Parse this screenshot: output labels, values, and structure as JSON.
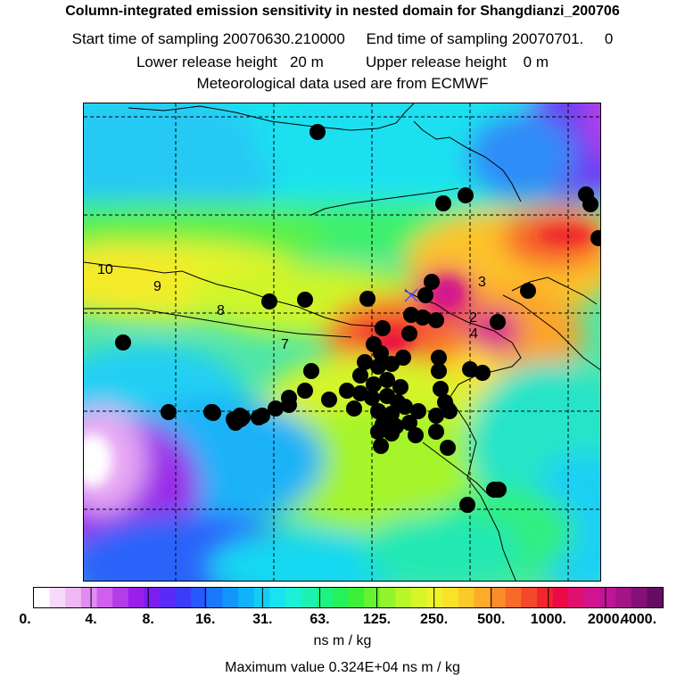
{
  "header": {
    "title": "Column-integrated emission sensitivity in nested domain for Shangdianzi_200706",
    "line2": "Start time of sampling 20070630.210000     End time of sampling 20070701.     0",
    "line3": "Lower release height   20 m          Upper release height    0 m",
    "line4": "Meteorological data used are from ECMWF"
  },
  "map": {
    "trajectory_labels": [
      "10",
      "9",
      "8",
      "7",
      "3",
      "2",
      "4"
    ]
  },
  "colorbar": {
    "ticks": [
      "0.",
      "4.",
      "8.",
      "16.",
      "31.",
      "63.",
      "125.",
      "250.",
      "500.",
      "1000.",
      "2000.",
      "4000."
    ],
    "colors": [
      "#ffffff",
      "#f8d8fb",
      "#eeb8f5",
      "#e08cf0",
      "#d060ec",
      "#b53de8",
      "#9a1fe8",
      "#7a1ff0",
      "#5a2af6",
      "#3a3cf8",
      "#2758fb",
      "#1a78fc",
      "#1296fc",
      "#10b2fa",
      "#12cdf6",
      "#18e3ee",
      "#1cf0d6",
      "#1cf3b0",
      "#1ef285",
      "#26f05a",
      "#3cf03a",
      "#66f230",
      "#92f42c",
      "#b8f62a",
      "#d6f62a",
      "#eef22a",
      "#fbe22a",
      "#fdc82a",
      "#fdac2a",
      "#fb8c2a",
      "#f86a2a",
      "#f4482a",
      "#f0262e",
      "#ea0a48",
      "#e01070",
      "#d21490",
      "#bc1696",
      "#a21488",
      "#84107a",
      "#660c62"
    ],
    "unit": "ns m / kg"
  },
  "footer": {
    "max_value": "Maximum value  0.324E+04 ns m / kg"
  }
}
